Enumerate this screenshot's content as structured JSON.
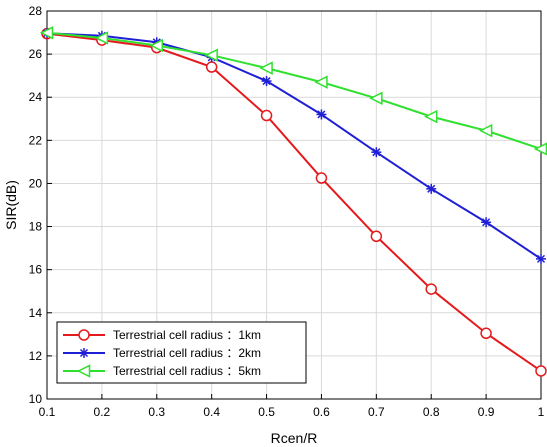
{
  "chart_data": {
    "type": "line",
    "title": "",
    "xlabel": "Rcen/R",
    "ylabel": "SIR(dB)",
    "x": [
      0.1,
      0.2,
      0.3,
      0.4,
      0.5,
      0.6,
      0.7,
      0.8,
      0.9,
      1
    ],
    "x_tick_labels": [
      "0.1",
      "0.2",
      "0.3",
      "0.4",
      "0.5",
      "0.6",
      "0.7",
      "0.8",
      "0.9",
      "1"
    ],
    "xlim": [
      0.1,
      1
    ],
    "ylim": [
      10,
      28
    ],
    "y_ticks": [
      10,
      12,
      14,
      16,
      18,
      20,
      22,
      24,
      26,
      28
    ],
    "grid": true,
    "legend_position": "bottom-left",
    "series": [
      {
        "name": "Terrestrial cell radius ：1km",
        "color": "#e41a1c",
        "marker": "circle",
        "values": [
          26.95,
          26.65,
          26.3,
          25.4,
          23.15,
          20.25,
          17.55,
          15.1,
          13.05,
          11.3
        ]
      },
      {
        "name": "Terrestrial cell radius ：2km",
        "color": "#1f1fd6",
        "marker": "asterisk",
        "values": [
          26.97,
          26.85,
          26.55,
          25.85,
          24.75,
          23.2,
          21.45,
          19.75,
          18.2,
          16.5
        ]
      },
      {
        "name": "Terrestrial cell radius ：5km",
        "color": "#2fe02f",
        "marker": "triangle-left",
        "values": [
          26.99,
          26.75,
          26.4,
          25.95,
          25.35,
          24.7,
          23.95,
          23.1,
          22.45,
          21.6
        ]
      }
    ]
  }
}
